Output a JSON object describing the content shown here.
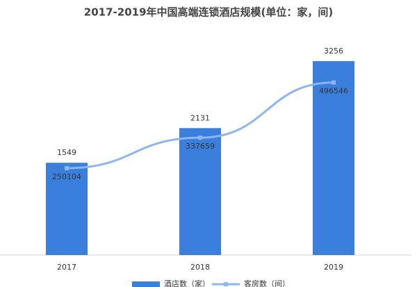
{
  "chart_data": {
    "type": "bar-line",
    "title": "2017-2019年中国高端连锁酒店规模(单位：家，间)",
    "categories": [
      "2017",
      "2018",
      "2019"
    ],
    "series": [
      {
        "name": "酒店数（家）",
        "type": "bar",
        "color": "#3b7fdd",
        "values": [
          1549,
          2131,
          3256
        ]
      },
      {
        "name": "客房数（间）",
        "type": "line",
        "axis": "y2",
        "color": "#8cb6ef",
        "values": [
          250104,
          337659,
          496546
        ]
      }
    ],
    "ylim": [
      0,
      3500
    ],
    "y2lim": [
      0,
      600000
    ],
    "legend": "bottom"
  }
}
